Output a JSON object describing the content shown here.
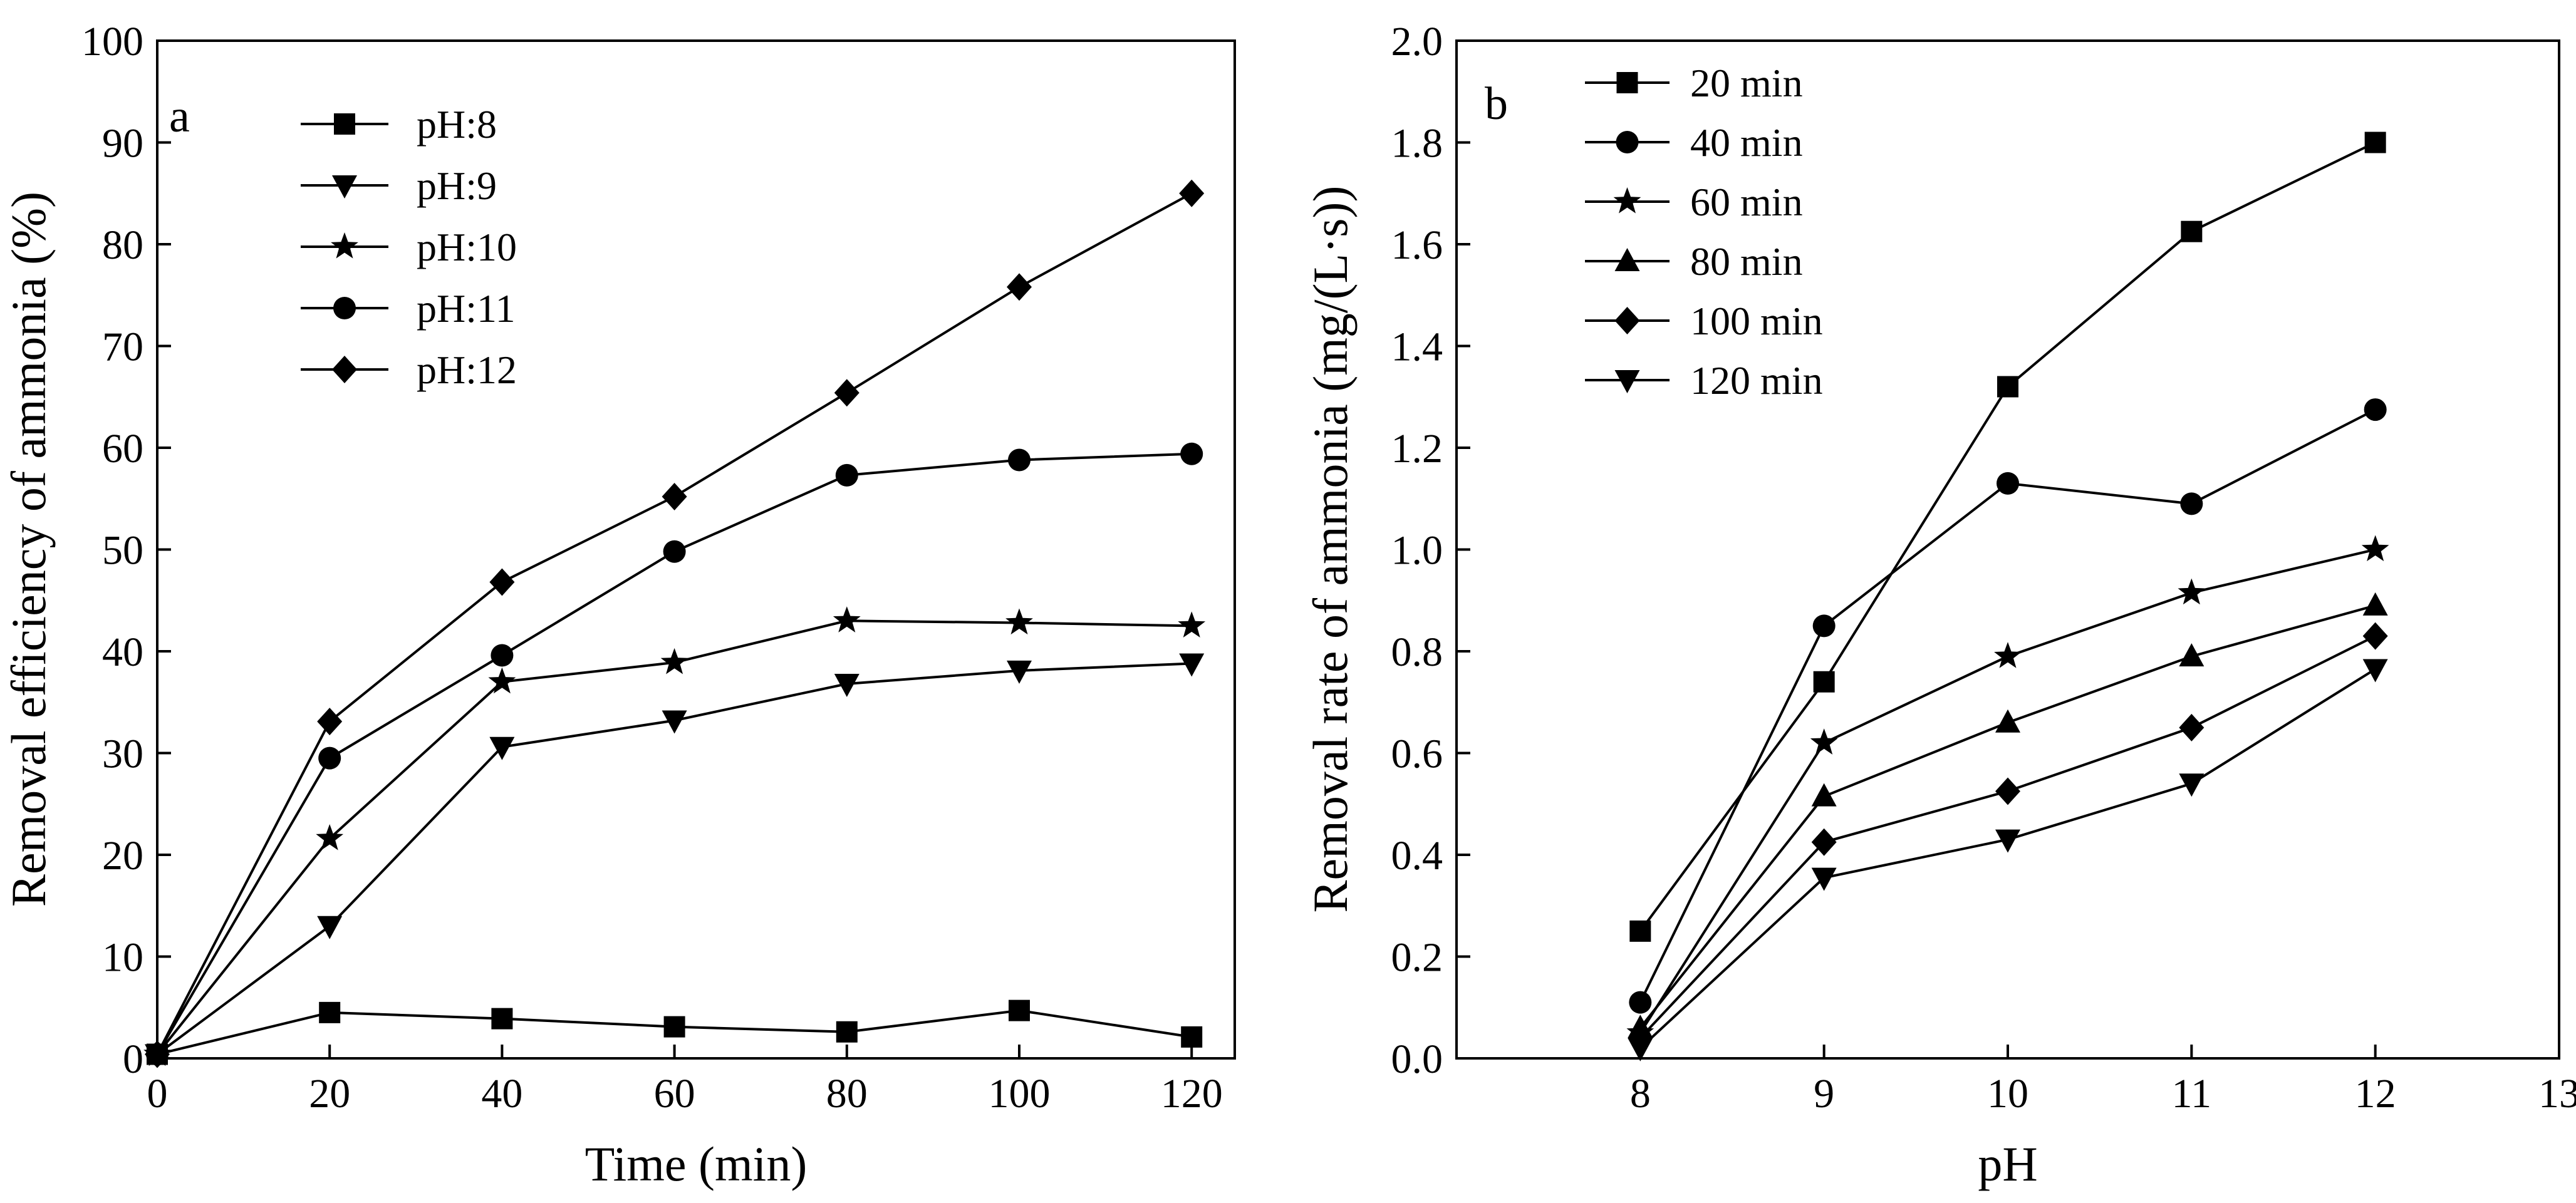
{
  "chart_data": [
    {
      "panel": "a",
      "type": "line",
      "xlabel": "Time (min)",
      "ylabel": "Removal efficiency of ammonia (%)",
      "xlim": [
        0,
        125
      ],
      "ylim": [
        0,
        100
      ],
      "xticks": [
        0,
        20,
        40,
        60,
        80,
        100,
        120
      ],
      "yticks": [
        0,
        10,
        20,
        30,
        40,
        50,
        60,
        70,
        80,
        90,
        100
      ],
      "legend_position": "top-left",
      "series": [
        {
          "name": "pH:8",
          "marker": "square",
          "x": [
            0,
            20,
            40,
            60,
            80,
            100,
            120
          ],
          "y": [
            0.4,
            4.5,
            3.9,
            3.1,
            2.6,
            4.7,
            2.1
          ]
        },
        {
          "name": "pH:9",
          "marker": "triangle-down",
          "x": [
            0,
            20,
            40,
            60,
            80,
            100,
            120
          ],
          "y": [
            0.4,
            13.0,
            30.6,
            33.2,
            36.8,
            38.1,
            38.8
          ]
        },
        {
          "name": "pH:10",
          "marker": "star",
          "x": [
            0,
            20,
            40,
            60,
            80,
            100,
            120
          ],
          "y": [
            0.4,
            21.6,
            37.0,
            38.9,
            43.0,
            42.8,
            42.5
          ]
        },
        {
          "name": "pH:11",
          "marker": "circle",
          "x": [
            0,
            20,
            40,
            60,
            80,
            100,
            120
          ],
          "y": [
            0.4,
            29.5,
            39.6,
            49.8,
            57.3,
            58.8,
            59.4
          ]
        },
        {
          "name": "pH:12",
          "marker": "diamond",
          "x": [
            0,
            20,
            40,
            60,
            80,
            100,
            120
          ],
          "y": [
            0.4,
            33.1,
            46.8,
            55.2,
            65.4,
            75.8,
            85.0
          ]
        }
      ]
    },
    {
      "panel": "b",
      "type": "line",
      "xlabel": "pH",
      "ylabel": "Removal rate of ammonia (mg/(L·s))",
      "xlim": [
        7,
        13
      ],
      "ylim": [
        0.0,
        2.0
      ],
      "xticks": [
        8,
        9,
        10,
        11,
        12,
        13
      ],
      "yticks": [
        0.0,
        0.2,
        0.4,
        0.6,
        0.8,
        1.0,
        1.2,
        1.4,
        1.6,
        1.8,
        2.0
      ],
      "ytick_labels": [
        "0.0",
        "0.2",
        "0.4",
        "0.6",
        "0.8",
        "1.0",
        "1.2",
        "1.4",
        "1.6",
        "1.8",
        "2.0"
      ],
      "legend_position": "top-left",
      "series": [
        {
          "name": "20 min",
          "marker": "square",
          "x": [
            8,
            9,
            10,
            11,
            12
          ],
          "y": [
            0.25,
            0.74,
            1.32,
            1.625,
            1.8
          ]
        },
        {
          "name": "40 min",
          "marker": "circle",
          "x": [
            8,
            9,
            10,
            11,
            12
          ],
          "y": [
            0.11,
            0.85,
            1.13,
            1.09,
            1.275
          ]
        },
        {
          "name": "60 min",
          "marker": "star",
          "x": [
            8,
            9,
            10,
            11,
            12
          ],
          "y": [
            0.05,
            0.62,
            0.79,
            0.915,
            1.0
          ]
        },
        {
          "name": "80 min",
          "marker": "triangle-up",
          "x": [
            8,
            9,
            10,
            11,
            12
          ],
          "y": [
            0.06,
            0.515,
            0.66,
            0.79,
            0.89
          ]
        },
        {
          "name": "100 min",
          "marker": "diamond",
          "x": [
            8,
            9,
            10,
            11,
            12
          ],
          "y": [
            0.04,
            0.425,
            0.525,
            0.65,
            0.83
          ]
        },
        {
          "name": "120 min",
          "marker": "triangle-down",
          "x": [
            8,
            9,
            10,
            11,
            12
          ],
          "y": [
            0.02,
            0.355,
            0.43,
            0.54,
            0.765
          ]
        }
      ]
    }
  ]
}
